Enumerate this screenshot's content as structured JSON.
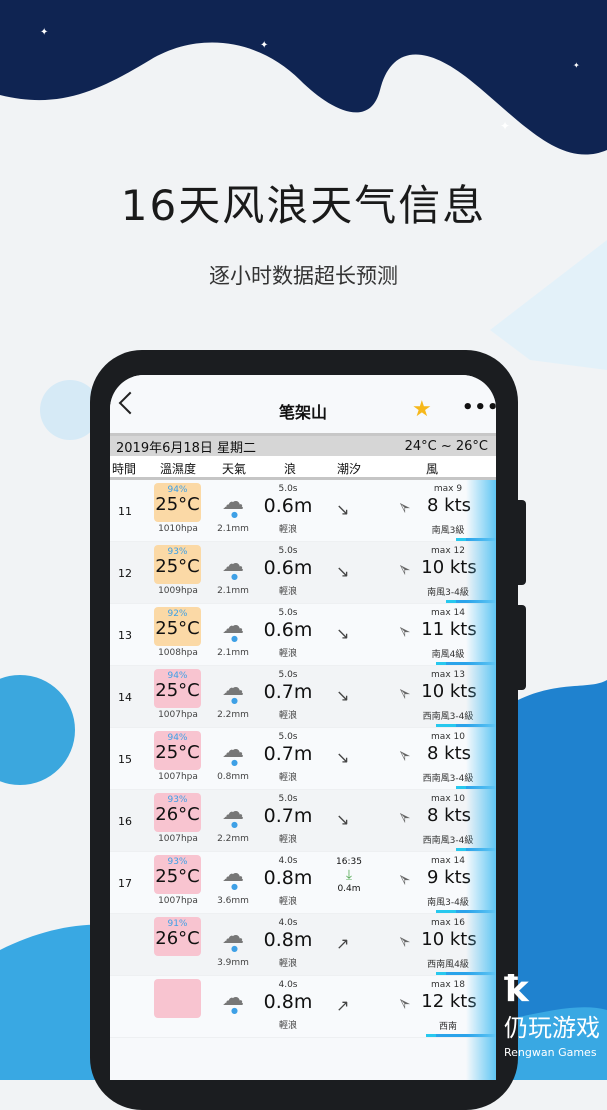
{
  "promo": {
    "headline": "16天风浪天气信息",
    "subtitle": "逐小时数据超长预测"
  },
  "header": {
    "title": "笔架山",
    "back_icon": "chevron-left-icon",
    "favorite_icon": "star-icon",
    "more_icon": "more-icon",
    "more_label": "•••",
    "star_label": "★"
  },
  "date_bar": {
    "date": "2019年6月18日 星期二",
    "temp_range": "24°C ~ 26°C"
  },
  "columns": [
    "時間",
    "溫濕度",
    "天氣",
    "浪",
    "潮汐",
    "風"
  ],
  "colors": {
    "temp_warm": "#fbd9a6",
    "temp_hot": "#f8c4d0",
    "accent": "#2aa3ea",
    "navy": "#0f2452"
  },
  "rows": [
    {
      "hour": "11",
      "humidity": "94%",
      "temp": "25°C",
      "pressure": "1010hpa",
      "rain": "2.1mm",
      "period": "5.0s",
      "wave": "0.6m",
      "wave_desc": "輕浪",
      "tide_arrow": "↘",
      "wind_max": "max 9",
      "wind": "8 kts",
      "wind_desc": "南風3級",
      "hot": false
    },
    {
      "hour": "12",
      "humidity": "93%",
      "temp": "25°C",
      "pressure": "1009hpa",
      "rain": "2.1mm",
      "period": "5.0s",
      "wave": "0.6m",
      "wave_desc": "輕浪",
      "tide_arrow": "↘",
      "wind_max": "max 12",
      "wind": "10 kts",
      "wind_desc": "南風3-4級",
      "hot": false
    },
    {
      "hour": "13",
      "humidity": "92%",
      "temp": "25°C",
      "pressure": "1008hpa",
      "rain": "2.1mm",
      "period": "5.0s",
      "wave": "0.6m",
      "wave_desc": "輕浪",
      "tide_arrow": "↘",
      "wind_max": "max 14",
      "wind": "11 kts",
      "wind_desc": "南風4級",
      "hot": false
    },
    {
      "hour": "14",
      "humidity": "94%",
      "temp": "25°C",
      "pressure": "1007hpa",
      "rain": "2.2mm",
      "period": "5.0s",
      "wave": "0.7m",
      "wave_desc": "輕浪",
      "tide_arrow": "↘",
      "wind_max": "max 13",
      "wind": "10 kts",
      "wind_desc": "西南風3-4級",
      "hot": true
    },
    {
      "hour": "15",
      "humidity": "94%",
      "temp": "25°C",
      "pressure": "1007hpa",
      "rain": "0.8mm",
      "period": "5.0s",
      "wave": "0.7m",
      "wave_desc": "輕浪",
      "tide_arrow": "↘",
      "wind_max": "max 10",
      "wind": "8 kts",
      "wind_desc": "西南風3-4級",
      "hot": true
    },
    {
      "hour": "16",
      "humidity": "93%",
      "temp": "26°C",
      "pressure": "1007hpa",
      "rain": "2.2mm",
      "period": "5.0s",
      "wave": "0.7m",
      "wave_desc": "輕浪",
      "tide_arrow": "↘",
      "wind_max": "max 10",
      "wind": "8 kts",
      "wind_desc": "西南風3-4級",
      "hot": true
    },
    {
      "hour": "17",
      "humidity": "93%",
      "temp": "25°C",
      "pressure": "1007hpa",
      "rain": "3.6mm",
      "period": "4.0s",
      "wave": "0.8m",
      "wave_desc": "輕浪",
      "tide_time": "16:35",
      "tide_height": "0.4m",
      "wind_max": "max 14",
      "wind": "9 kts",
      "wind_desc": "南風3-4級",
      "hot": true
    },
    {
      "hour": "",
      "humidity": "91%",
      "temp": "26°C",
      "pressure": "",
      "rain": "3.9mm",
      "period": "4.0s",
      "wave": "0.8m",
      "wave_desc": "輕浪",
      "tide_arrow": "↗",
      "wind_max": "max 16",
      "wind": "10 kts",
      "wind_desc": "西南風4級",
      "hot": true
    },
    {
      "hour": "",
      "humidity": "",
      "temp": "",
      "pressure": "",
      "rain": "",
      "period": "4.0s",
      "wave": "0.8m",
      "wave_desc": "輕浪",
      "tide_arrow": "↗",
      "wind_max": "max 18",
      "wind": "12 kts",
      "wind_desc": "西南",
      "hot": true
    }
  ],
  "watermark": {
    "name": "仍玩游戏",
    "english": "Rengwan Games"
  }
}
